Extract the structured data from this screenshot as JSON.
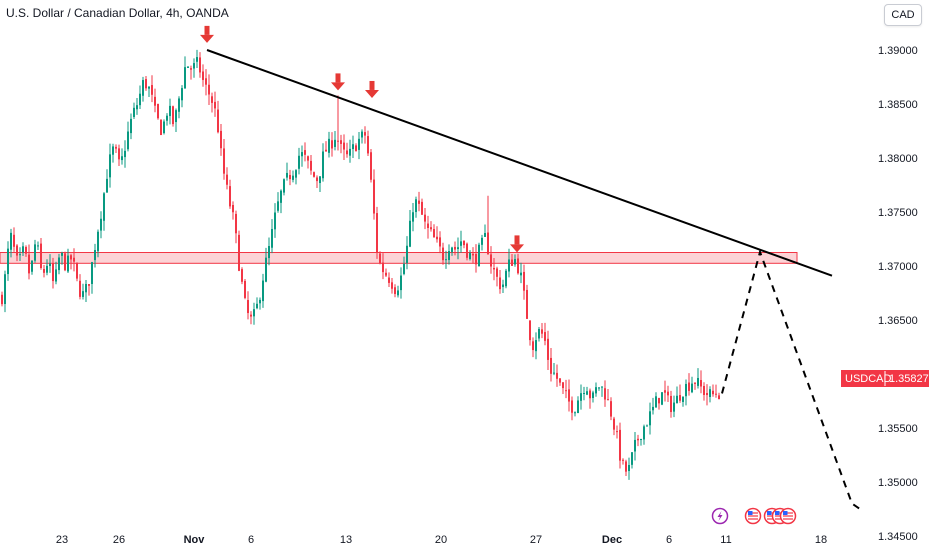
{
  "title": "U.S. Dollar / Canadian Dollar, 4h, OANDA",
  "currency_button": "CAD",
  "price_tag": {
    "symbol": "USDCAD",
    "price": "1.35827"
  },
  "event_icons": [
    "lightning-event-icon",
    "us-flag-event-icon",
    "us-flag-event-icon",
    "us-flag-event-icon",
    "us-flag-event-icon"
  ],
  "chart_data": {
    "type": "candlestick",
    "symbol": "USDCAD",
    "interval": "4h",
    "source": "OANDA",
    "ylim": [
      1.343,
      1.394
    ],
    "y_ticks": [
      "1.39000",
      "1.38500",
      "1.38000",
      "1.37500",
      "1.37000",
      "1.36500",
      "1.36000",
      "1.35500",
      "1.35000",
      "1.34500"
    ],
    "x_ticks": [
      "23",
      "26",
      "Nov",
      "6",
      "13",
      "20",
      "27",
      "Dec",
      "6",
      "11",
      "18"
    ],
    "x_ticks_bold": [
      "Nov",
      "Dec"
    ],
    "colors": {
      "up": "#089981",
      "down": "#f23645",
      "trendline": "#000000",
      "zone": "#f23645",
      "arrow": "#e53935"
    },
    "anchors": [
      [
        0,
        1.366
      ],
      [
        6,
        1.3695
      ],
      [
        10,
        1.373
      ],
      [
        18,
        1.37
      ],
      [
        24,
        1.3715
      ],
      [
        30,
        1.369
      ],
      [
        36,
        1.3725
      ],
      [
        42,
        1.369
      ],
      [
        48,
        1.3705
      ],
      [
        54,
        1.368
      ],
      [
        60,
        1.3712
      ],
      [
        66,
        1.37
      ],
      [
        72,
        1.3708
      ],
      [
        78,
        1.368
      ],
      [
        84,
        1.3672
      ],
      [
        90,
        1.369
      ],
      [
        96,
        1.3725
      ],
      [
        102,
        1.3755
      ],
      [
        108,
        1.3792
      ],
      [
        114,
        1.381
      ],
      [
        120,
        1.379
      ],
      [
        126,
        1.3815
      ],
      [
        132,
        1.3838
      ],
      [
        138,
        1.3852
      ],
      [
        144,
        1.3872
      ],
      [
        150,
        1.3862
      ],
      [
        156,
        1.3838
      ],
      [
        162,
        1.3825
      ],
      [
        168,
        1.3847
      ],
      [
        174,
        1.383
      ],
      [
        180,
        1.386
      ],
      [
        186,
        1.3888
      ],
      [
        192,
        1.3882
      ],
      [
        198,
        1.3888
      ],
      [
        204,
        1.3868
      ],
      [
        210,
        1.3858
      ],
      [
        214,
        1.3848
      ],
      [
        218,
        1.3828
      ],
      [
        222,
        1.3795
      ],
      [
        228,
        1.3765
      ],
      [
        234,
        1.374
      ],
      [
        240,
        1.3695
      ],
      [
        246,
        1.3658
      ],
      [
        252,
        1.3648
      ],
      [
        258,
        1.3665
      ],
      [
        264,
        1.3695
      ],
      [
        270,
        1.372
      ],
      [
        276,
        1.375
      ],
      [
        282,
        1.377
      ],
      [
        288,
        1.3782
      ],
      [
        294,
        1.379
      ],
      [
        300,
        1.3805
      ],
      [
        306,
        1.3798
      ],
      [
        312,
        1.3784
      ],
      [
        318,
        1.378
      ],
      [
        324,
        1.3805
      ],
      [
        330,
        1.3812
      ],
      [
        336,
        1.3822
      ],
      [
        342,
        1.3805
      ],
      [
        348,
        1.38
      ],
      [
        354,
        1.381
      ],
      [
        360,
        1.3818
      ],
      [
        366,
        1.3822
      ],
      [
        372,
        1.3768
      ],
      [
        378,
        1.3705
      ],
      [
        384,
        1.3695
      ],
      [
        390,
        1.3688
      ],
      [
        396,
        1.3678
      ],
      [
        402,
        1.3692
      ],
      [
        408,
        1.3722
      ],
      [
        414,
        1.3762
      ],
      [
        420,
        1.3752
      ],
      [
        426,
        1.3735
      ],
      [
        432,
        1.3728
      ],
      [
        438,
        1.3718
      ],
      [
        444,
        1.3708
      ],
      [
        450,
        1.3722
      ],
      [
        456,
        1.3715
      ],
      [
        462,
        1.3725
      ],
      [
        468,
        1.3712
      ],
      [
        474,
        1.3705
      ],
      [
        480,
        1.3715
      ],
      [
        486,
        1.3728
      ],
      [
        490,
        1.3705
      ],
      [
        496,
        1.369
      ],
      [
        502,
        1.368
      ],
      [
        508,
        1.37
      ],
      [
        514,
        1.3708
      ],
      [
        520,
        1.3695
      ],
      [
        526,
        1.366
      ],
      [
        532,
        1.3625
      ],
      [
        538,
        1.364
      ],
      [
        544,
        1.3635
      ],
      [
        550,
        1.3605
      ],
      [
        556,
        1.3598
      ],
      [
        562,
        1.3585
      ],
      [
        568,
        1.3575
      ],
      [
        574,
        1.3568
      ],
      [
        580,
        1.3582
      ],
      [
        586,
        1.3592
      ],
      [
        592,
        1.3575
      ],
      [
        598,
        1.359
      ],
      [
        604,
        1.3585
      ],
      [
        610,
        1.3568
      ],
      [
        616,
        1.3545
      ],
      [
        622,
        1.3515
      ],
      [
        628,
        1.3508
      ],
      [
        634,
        1.353
      ],
      [
        640,
        1.3545
      ],
      [
        646,
        1.3555
      ],
      [
        652,
        1.3565
      ],
      [
        658,
        1.3578
      ],
      [
        664,
        1.3582
      ],
      [
        670,
        1.357
      ],
      [
        676,
        1.3575
      ],
      [
        682,
        1.3585
      ],
      [
        688,
        1.359
      ],
      [
        694,
        1.3595
      ],
      [
        700,
        1.3588
      ],
      [
        706,
        1.3582
      ],
      [
        712,
        1.358
      ],
      [
        716,
        1.3583
      ],
      [
        720,
        1.3582
      ]
    ],
    "annotations": {
      "resistance_trendline": {
        "from": [
          207,
          1.39
        ],
        "to": [
          832,
          1.3691
        ]
      },
      "supply_zone": {
        "y_top": 1.37125,
        "y_bottom": 1.37025
      },
      "down_arrows": [
        [
          207,
          1.3914
        ],
        [
          338,
          1.387
        ],
        [
          372,
          1.3863
        ],
        [
          517,
          1.372
        ]
      ],
      "projection_path": [
        [
          722,
          1.3582
        ],
        [
          760,
          1.3713
        ],
        [
          852,
          1.348
        ],
        [
          860,
          1.3475
        ]
      ]
    }
  }
}
